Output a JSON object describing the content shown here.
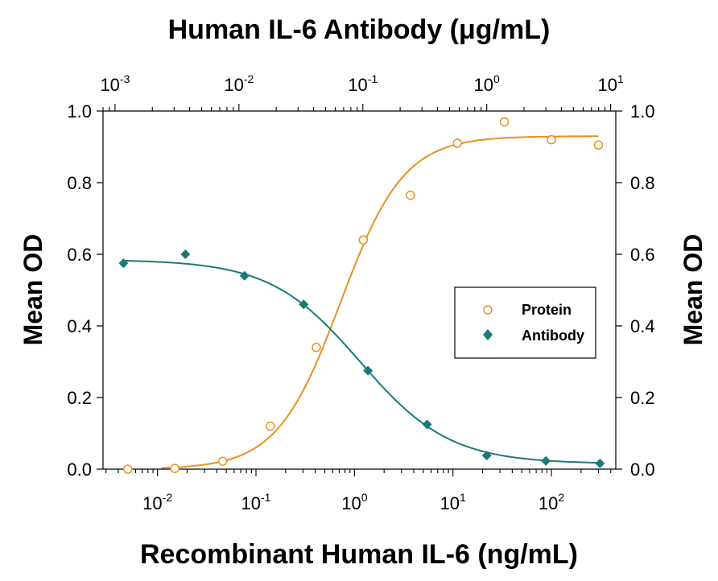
{
  "chart_data": {
    "type": "scatter",
    "title": "Human IL-6 Antibody (μg/mL)",
    "xlabel": "Recombinant Human IL-6 (ng/mL)",
    "x2label": "Human IL-6 Antibody (μg/mL)",
    "ylabel": "Mean OD",
    "y2label": "Mean OD",
    "x_scale": "log",
    "xlim": [
      0.0028,
      450
    ],
    "x2_scale": "log",
    "x2lim": [
      0.0008,
      11
    ],
    "ylim": [
      0,
      1.0
    ],
    "yticks": [
      "0.0",
      "0.2",
      "0.4",
      "0.6",
      "0.8",
      "1.0"
    ],
    "xticks": [
      {
        "base": "10",
        "exp": "-2",
        "value": 0.01
      },
      {
        "base": "10",
        "exp": "-1",
        "value": 0.1
      },
      {
        "base": "10",
        "exp": "0",
        "value": 1
      },
      {
        "base": "10",
        "exp": "1",
        "value": 10
      },
      {
        "base": "10",
        "exp": "2",
        "value": 100
      }
    ],
    "x2ticks": [
      {
        "base": "10",
        "exp": "-3",
        "value": 0.001
      },
      {
        "base": "10",
        "exp": "-2",
        "value": 0.01
      },
      {
        "base": "10",
        "exp": "-1",
        "value": 0.1
      },
      {
        "base": "10",
        "exp": "0",
        "value": 1
      },
      {
        "base": "10",
        "exp": "1",
        "value": 10
      }
    ],
    "legend_position": "center-right",
    "series": [
      {
        "name": "Protein",
        "axis": "bottom",
        "marker": "open-circle",
        "color": "#e8901e",
        "points": [
          {
            "x": 0.005,
            "y": 0.0
          },
          {
            "x": 0.015,
            "y": 0.002
          },
          {
            "x": 0.046,
            "y": 0.022
          },
          {
            "x": 0.14,
            "y": 0.12
          },
          {
            "x": 0.41,
            "y": 0.34
          },
          {
            "x": 1.23,
            "y": 0.64
          },
          {
            "x": 3.7,
            "y": 0.765
          },
          {
            "x": 11.1,
            "y": 0.91
          },
          {
            "x": 33.3,
            "y": 0.97
          },
          {
            "x": 100,
            "y": 0.92
          },
          {
            "x": 300,
            "y": 0.905
          }
        ],
        "fit": {
          "bottom": 0.0,
          "top": 0.93,
          "ec50": 0.72,
          "hill": 1.35
        }
      },
      {
        "name": "Antibody",
        "axis": "top",
        "marker": "filled-diamond",
        "color": "#1a7a78",
        "points": [
          {
            "x": 0.00117,
            "y": 0.575
          },
          {
            "x": 0.0037,
            "y": 0.6
          },
          {
            "x": 0.0111,
            "y": 0.54
          },
          {
            "x": 0.0333,
            "y": 0.46
          },
          {
            "x": 0.11,
            "y": 0.275
          },
          {
            "x": 0.33,
            "y": 0.125
          },
          {
            "x": 1.0,
            "y": 0.038
          },
          {
            "x": 3.0,
            "y": 0.023
          },
          {
            "x": 8.2,
            "y": 0.016
          }
        ],
        "fit": {
          "bottom": 0.015,
          "top": 0.585,
          "ec50": 0.095,
          "hill": 1.2
        }
      }
    ]
  }
}
